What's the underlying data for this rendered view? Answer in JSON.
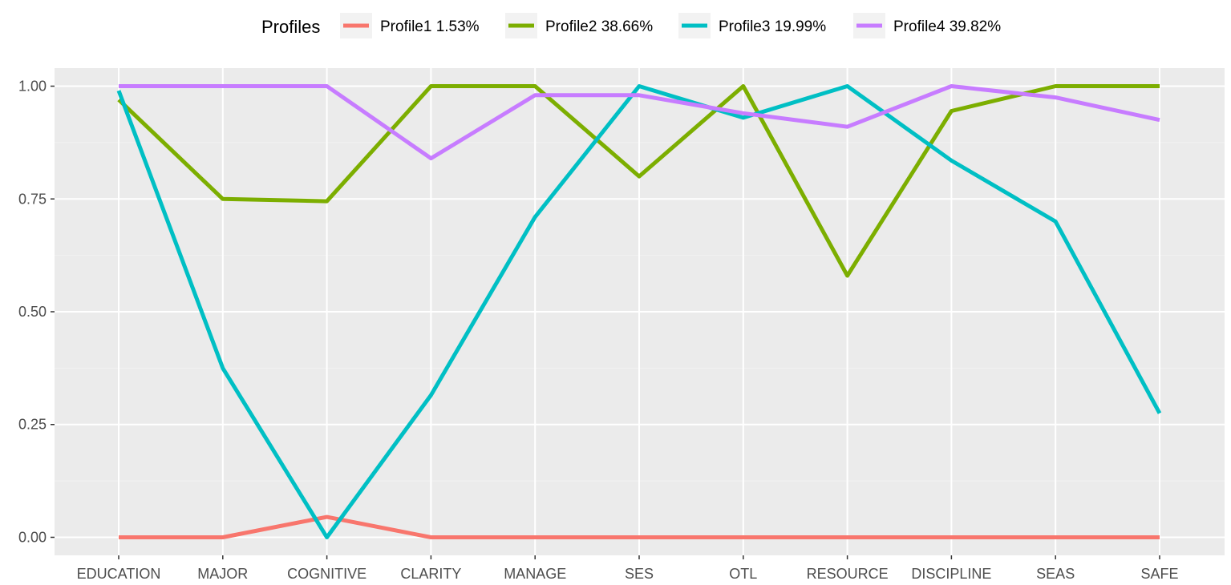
{
  "chart_data": {
    "type": "line",
    "title": "",
    "xlabel": "",
    "ylabel": "",
    "legend_title": "Profiles",
    "legend_position": "top",
    "grid": true,
    "ylim": [
      -0.04,
      1.04
    ],
    "yticks": [
      0.0,
      0.25,
      0.5,
      0.75,
      1.0
    ],
    "ytick_labels": [
      "0.00",
      "0.25",
      "0.50",
      "0.75",
      "1.00"
    ],
    "categories": [
      "EDUCATION",
      "MAJOR",
      "COGNITIVE",
      "CLARITY",
      "MANAGE",
      "SES",
      "OTL",
      "RESOURCE",
      "DISCIPLINE",
      "SEAS",
      "SAFE"
    ],
    "series": [
      {
        "name": "Profile1",
        "legend_label": "Profile1  1.53%",
        "color": "#F8766D",
        "values": [
          0.0,
          0.0,
          0.045,
          0.0,
          0.0,
          0.0,
          0.0,
          0.0,
          0.0,
          0.0,
          0.0
        ]
      },
      {
        "name": "Profile2",
        "legend_label": "Profile2  38.66%",
        "color": "#7CAE00",
        "values": [
          0.97,
          0.75,
          0.745,
          1.0,
          1.0,
          0.8,
          1.0,
          0.58,
          0.945,
          1.0,
          1.0
        ]
      },
      {
        "name": "Profile3",
        "legend_label": "Profile3  19.99%",
        "color": "#00BFC4",
        "values": [
          0.99,
          0.375,
          0.0,
          0.315,
          0.71,
          1.0,
          0.93,
          1.0,
          0.835,
          0.7,
          0.275
        ]
      },
      {
        "name": "Profile4",
        "legend_label": "Profile4  39.82%",
        "color": "#C77CFF",
        "values": [
          1.0,
          1.0,
          1.0,
          0.84,
          0.98,
          0.98,
          0.94,
          0.91,
          1.0,
          0.975,
          0.925
        ]
      }
    ],
    "colors": {
      "panel_background": "#EBEBEB",
      "grid_major": "#FFFFFF",
      "grid_minor": "#F2F2F2",
      "tick_text": "#4D4D4D",
      "legend_key_background": "#F2F2F2"
    }
  }
}
